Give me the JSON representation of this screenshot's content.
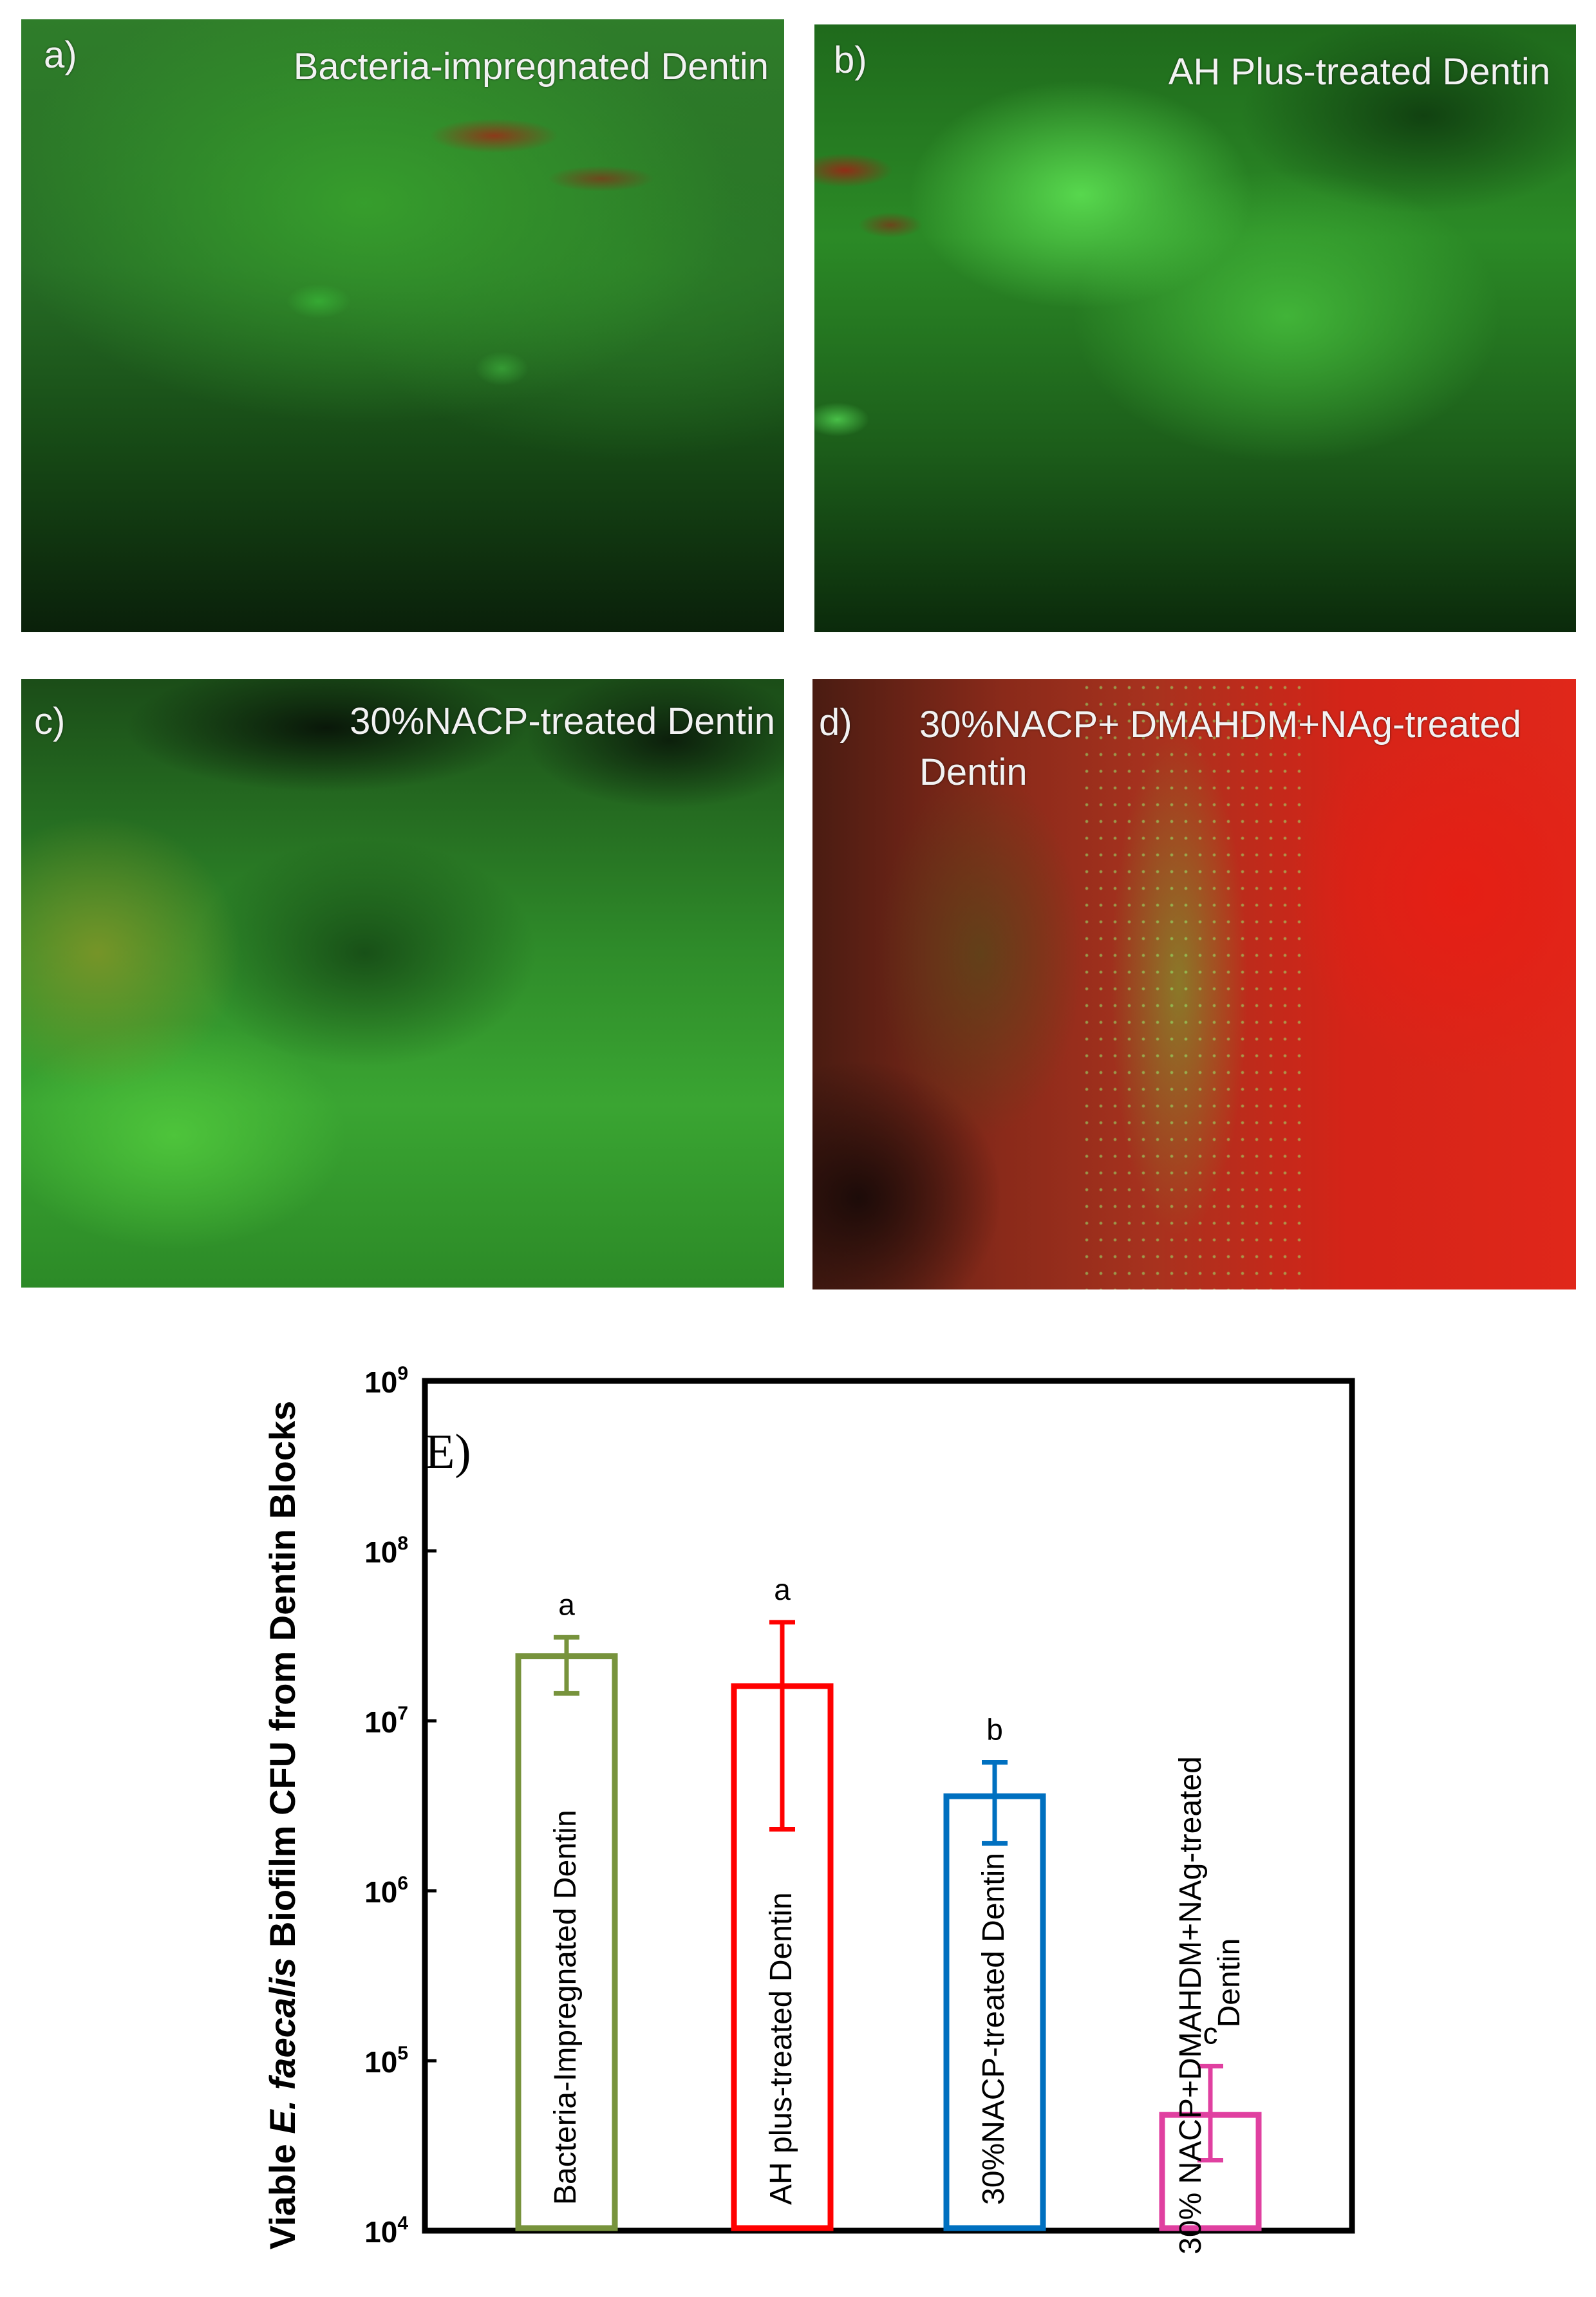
{
  "micrographs": [
    {
      "label": "a)",
      "title": "Bacteria-impregnated Dentin"
    },
    {
      "label": "b)",
      "title": "AH Plus-treated Dentin"
    },
    {
      "label": "c)",
      "title": "30%NACP-treated Dentin"
    },
    {
      "label": "d)",
      "title": "30%NACP+ DMAHDM+NAg-treated Dentin"
    }
  ],
  "chart_data": {
    "type": "bar",
    "panel_label": "E)",
    "ylabel": {
      "prefix": "Viable ",
      "italic": "E. faecalis",
      "suffix": " Biofilm CFU from Dentin Blocks"
    },
    "yscale": "log",
    "ylim": [
      10000,
      1000000000
    ],
    "y_ticks": [
      {
        "base": "10",
        "exp": "4",
        "value": 10000
      },
      {
        "base": "10",
        "exp": "5",
        "value": 100000
      },
      {
        "base": "10",
        "exp": "6",
        "value": 1000000
      },
      {
        "base": "10",
        "exp": "7",
        "value": 10000000
      },
      {
        "base": "10",
        "exp": "8",
        "value": 100000000
      },
      {
        "base": "10",
        "exp": "9",
        "value": 1000000000
      }
    ],
    "bars_filled": false,
    "categories": [
      {
        "label": [
          "Bacteria-Impregnated Dentin"
        ],
        "value": 24000000,
        "err_low": 14500000,
        "err_high": 31000000,
        "sig": "a",
        "color": "#77933c"
      },
      {
        "label": [
          "AH plus-treated Dentin"
        ],
        "value": 16000000,
        "err_low": 2300000,
        "err_high": 38000000,
        "sig": "a",
        "color": "#ff0000"
      },
      {
        "label": [
          "30%NACP-treated Dentin"
        ],
        "value": 3600000,
        "err_low": 1900000,
        "err_high": 5700000,
        "sig": "b",
        "color": "#0070c0"
      },
      {
        "label": [
          "30% NACP+DMAHDM+NAg-treated",
          "Dentin"
        ],
        "value": 48000,
        "err_low": 26000,
        "err_high": 93000,
        "sig": "c",
        "color": "#e040a0"
      }
    ]
  }
}
